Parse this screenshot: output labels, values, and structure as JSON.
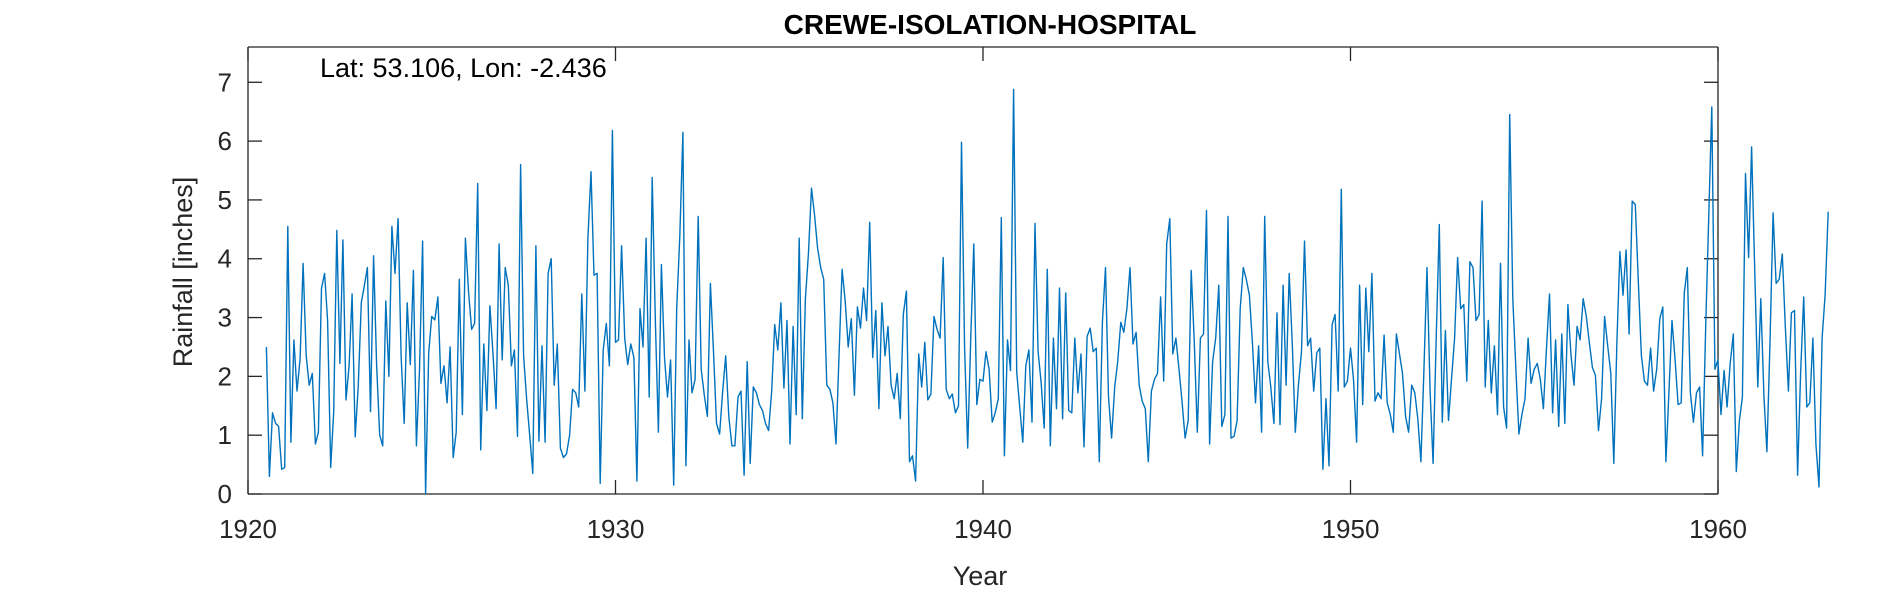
{
  "chart_data": {
    "type": "line",
    "title": "CREWE-ISOLATION-HOSPITAL",
    "annotation": "Lat: 53.106, Lon: -2.436",
    "xlabel": "Year",
    "ylabel": "Rainfall [inches]",
    "xlim": [
      1920,
      1960
    ],
    "ylim": [
      0,
      7.6
    ],
    "xticks": [
      1920,
      1930,
      1940,
      1950,
      1960
    ],
    "yticks": [
      0,
      1,
      2,
      3,
      4,
      5,
      6,
      7
    ],
    "grid": false,
    "line_color": "#0072BD",
    "x_start": 1920.5,
    "x_step": 0.08333,
    "series": [
      {
        "values": [
          2.5,
          0.3,
          1.38,
          1.2,
          1.15,
          0.42,
          0.45,
          4.55,
          0.88,
          2.62,
          1.75,
          2.3,
          3.92,
          2.35,
          1.85,
          2.05,
          0.85,
          1.05,
          3.5,
          3.75,
          2.95,
          0.45,
          1.4,
          4.48,
          2.22,
          4.32,
          1.6,
          2.18,
          3.4,
          0.97,
          1.82,
          3.25,
          3.55,
          3.85,
          1.4,
          4.05,
          2.2,
          1.0,
          0.82,
          3.28,
          2.0,
          4.55,
          3.75,
          4.68,
          2.35,
          1.2,
          3.25,
          2.2,
          3.8,
          0.82,
          2.1,
          4.3,
          0.0,
          2.4,
          3.02,
          2.96,
          3.35,
          1.88,
          2.18,
          1.55,
          2.5,
          0.62,
          1.05,
          3.65,
          1.35,
          4.35,
          3.45,
          2.8,
          2.9,
          5.28,
          0.75,
          2.55,
          1.42,
          3.2,
          2.38,
          1.45,
          4.25,
          2.28,
          3.85,
          3.55,
          2.18,
          2.45,
          0.98,
          5.6,
          2.35,
          1.6,
          1.0,
          0.35,
          4.22,
          0.9,
          2.52,
          0.88,
          3.75,
          4.0,
          1.85,
          2.55,
          0.78,
          0.62,
          0.68,
          1.0,
          1.78,
          1.72,
          1.48,
          3.4,
          1.75,
          4.35,
          5.48,
          3.72,
          3.75,
          0.18,
          2.45,
          2.9,
          2.18,
          6.18,
          2.58,
          2.62,
          4.22,
          2.65,
          2.2,
          2.55,
          2.32,
          0.22,
          3.15,
          2.5,
          4.35,
          1.65,
          5.38,
          2.98,
          1.05,
          3.9,
          2.32,
          1.65,
          2.28,
          0.15,
          3.15,
          4.38,
          6.15,
          0.48,
          2.62,
          1.72,
          1.95,
          4.72,
          2.12,
          1.68,
          1.32,
          3.58,
          2.42,
          1.2,
          1.02,
          1.75,
          2.35,
          1.32,
          0.82,
          0.82,
          1.65,
          1.75,
          0.32,
          2.25,
          0.52,
          1.82,
          1.72,
          1.52,
          1.42,
          1.2,
          1.08,
          1.75,
          2.88,
          2.45,
          3.25,
          1.8,
          2.95,
          0.85,
          2.85,
          1.35,
          4.35,
          1.28,
          3.32,
          4.08,
          5.2,
          4.75,
          4.18,
          3.85,
          3.65,
          1.85,
          1.78,
          1.55,
          0.85,
          2.35,
          3.82,
          3.28,
          2.5,
          2.98,
          1.68,
          3.18,
          2.82,
          3.5,
          2.95,
          4.62,
          2.32,
          3.12,
          1.45,
          3.25,
          2.35,
          2.85,
          1.85,
          1.62,
          2.05,
          1.28,
          3.05,
          3.45,
          0.55,
          0.65,
          0.22,
          2.38,
          1.82,
          2.58,
          1.6,
          1.7,
          3.02,
          2.8,
          2.65,
          4.02,
          1.78,
          1.62,
          1.7,
          1.38,
          1.5,
          5.98,
          2.48,
          0.78,
          2.62,
          4.25,
          1.52,
          1.95,
          1.92,
          2.42,
          2.12,
          1.22,
          1.38,
          1.62,
          4.7,
          0.65,
          2.62,
          2.1,
          6.88,
          2.08,
          1.48,
          0.88,
          2.18,
          2.45,
          1.22,
          4.6,
          2.42,
          1.88,
          1.12,
          3.82,
          0.82,
          2.65,
          1.45,
          3.5,
          1.28,
          3.42,
          1.42,
          1.38,
          2.65,
          1.72,
          2.38,
          0.8,
          2.68,
          2.82,
          2.42,
          2.48,
          0.55,
          2.92,
          3.85,
          1.65,
          0.95,
          1.82,
          2.25,
          2.92,
          2.75,
          3.15,
          3.85,
          2.55,
          2.75,
          1.85,
          1.58,
          1.45,
          0.55,
          1.75,
          1.95,
          2.05,
          3.35,
          1.92,
          4.25,
          4.68,
          2.38,
          2.65,
          2.12,
          1.58,
          0.95,
          1.25,
          3.8,
          2.58,
          1.05,
          2.65,
          2.72,
          4.82,
          0.85,
          2.25,
          2.65,
          3.55,
          1.15,
          1.35,
          4.72,
          0.95,
          0.98,
          1.25,
          3.15,
          3.85,
          3.65,
          3.38,
          2.55,
          1.55,
          2.52,
          1.05,
          4.72,
          2.25,
          1.82,
          1.2,
          3.08,
          1.18,
          3.55,
          1.85,
          3.75,
          2.55,
          1.05,
          1.85,
          2.42,
          4.3,
          2.52,
          2.65,
          1.75,
          2.4,
          2.48,
          0.42,
          1.62,
          0.48,
          2.88,
          3.05,
          1.75,
          5.18,
          1.82,
          1.92,
          2.48,
          1.95,
          0.88,
          3.55,
          1.52,
          3.5,
          2.42,
          3.75,
          1.58,
          1.72,
          1.62,
          2.7,
          1.55,
          1.35,
          1.05,
          2.72,
          2.38,
          2.05,
          1.32,
          1.05,
          1.85,
          1.72,
          1.28,
          0.55,
          2.15,
          3.85,
          1.75,
          0.52,
          2.65,
          4.58,
          1.22,
          2.78,
          1.25,
          1.95,
          2.65,
          4.02,
          3.15,
          3.22,
          1.92,
          3.95,
          3.85,
          2.95,
          3.05,
          4.98,
          1.82,
          2.95,
          1.72,
          2.52,
          1.35,
          3.92,
          1.48,
          1.12,
          6.45,
          3.32,
          2.15,
          1.02,
          1.35,
          1.62,
          2.65,
          1.88,
          2.12,
          2.22,
          1.95,
          1.45,
          2.45,
          3.4,
          1.38,
          2.62,
          1.15,
          2.72,
          1.2,
          3.22,
          2.38,
          1.85,
          2.85,
          2.62,
          3.32,
          3.02,
          2.58,
          2.15,
          2.02,
          1.08,
          1.62,
          3.02,
          2.52,
          2.05,
          0.52,
          2.58,
          4.12,
          3.38,
          4.15,
          2.72,
          4.98,
          4.92,
          3.62,
          2.35,
          1.92,
          1.85,
          2.48,
          1.75,
          2.12,
          2.98,
          3.18,
          0.55,
          1.72,
          2.95,
          2.28,
          1.52,
          1.55,
          3.42,
          3.85,
          1.72,
          1.22,
          1.72,
          1.82,
          0.65,
          2.85,
          4.75,
          6.58,
          2.12,
          2.28,
          1.35,
          2.1,
          1.48,
          2.22,
          2.72,
          0.38,
          1.25,
          1.65,
          5.45,
          4.02,
          5.9,
          3.82,
          1.82,
          3.32,
          1.68,
          0.72,
          2.58,
          4.78,
          3.58,
          3.65,
          4.08,
          2.85,
          1.75,
          3.08,
          3.12,
          0.32,
          2.05,
          3.35,
          1.48,
          1.55,
          2.65,
          0.85,
          0.12,
          2.65,
          3.38,
          4.8
        ]
      }
    ]
  }
}
